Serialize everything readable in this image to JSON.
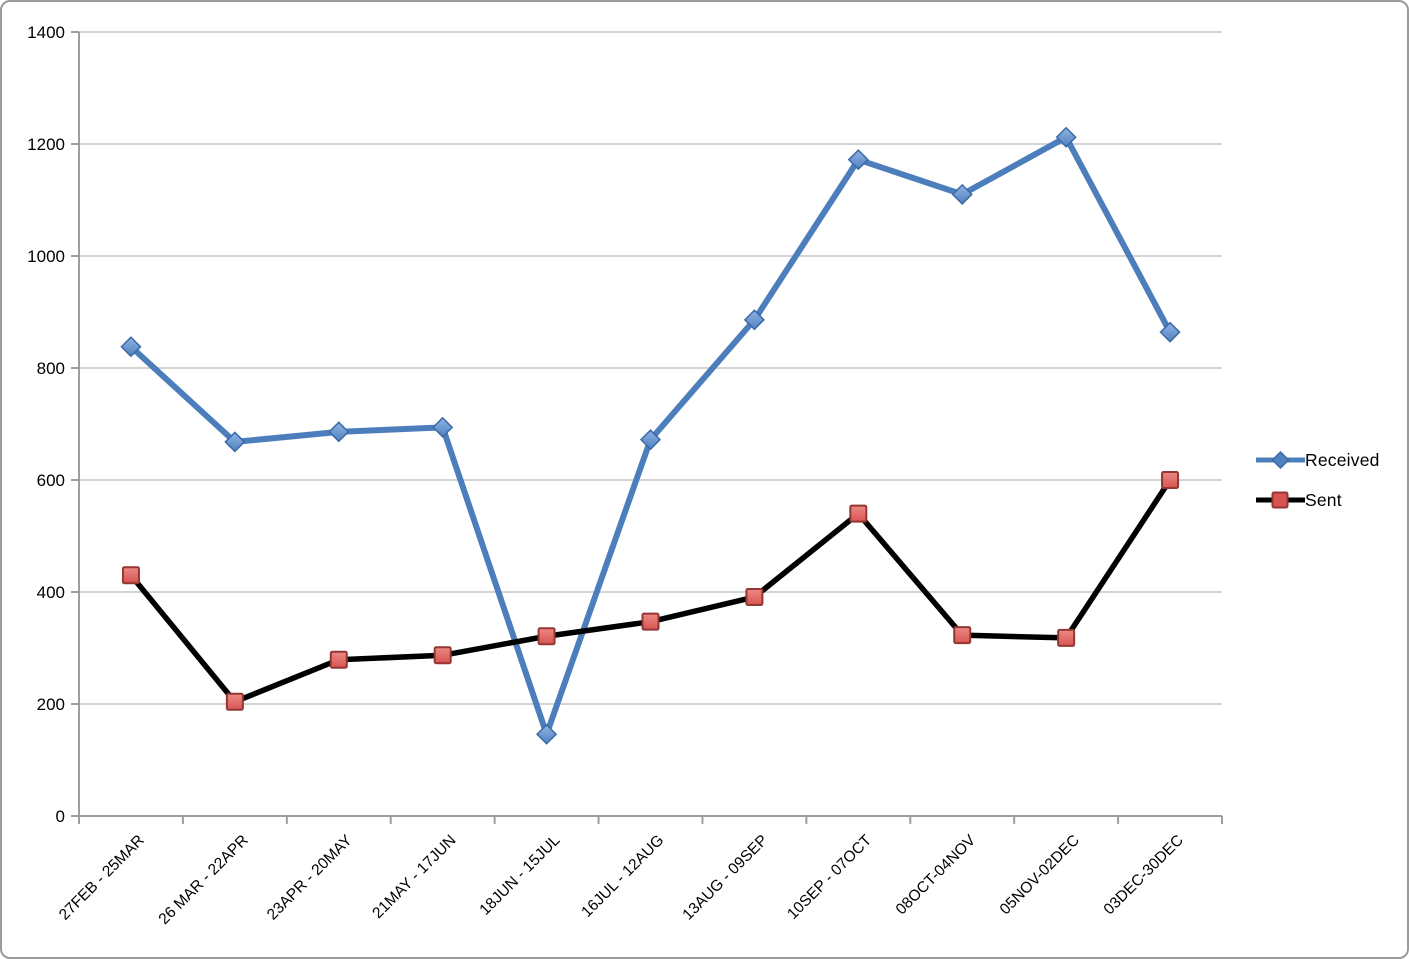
{
  "chart_data": {
    "type": "line",
    "title": "",
    "xlabel": "",
    "ylabel": "",
    "categories": [
      "27FEB - 25MAR",
      "26 MAR - 22APR",
      "23APR - 20MAY",
      "21MAY - 17JUN",
      "18JUN - 15JUL",
      "16JUL - 12AUG",
      "13AUG - 09SEP",
      "10SEP - 07OCT",
      "08OCT-04NOV",
      "05NOV-02DEC",
      "03DEC-30DEC"
    ],
    "series": [
      {
        "name": "Received",
        "values": [
          838,
          668,
          686,
          694,
          146,
          672,
          886,
          1172,
          1110,
          1212,
          864
        ],
        "line_color": "#4d7ebc",
        "marker": "diamond",
        "marker_fill_top": "#8fb4e3",
        "marker_fill_bottom": "#5081c1",
        "marker_stroke": "#3b69a5"
      },
      {
        "name": "Sent",
        "values": [
          430,
          204,
          279,
          287,
          321,
          347,
          391,
          540,
          323,
          318,
          600
        ],
        "line_color": "#000000",
        "marker": "square",
        "marker_fill_top": "#ec8a86",
        "marker_fill_bottom": "#d85450",
        "marker_stroke": "#943634"
      }
    ],
    "ylim": [
      0,
      1400
    ],
    "yticks": [
      0,
      200,
      400,
      600,
      800,
      1000,
      1200,
      1400
    ],
    "grid": true,
    "legend_position": "right"
  },
  "colors": {
    "gridline": "#c5c5c5",
    "axis": "#9d9d9d",
    "tick": "#9d9d9d",
    "text": "#000000",
    "frame_border": "#9b9b9b",
    "background": "#ffffff"
  }
}
